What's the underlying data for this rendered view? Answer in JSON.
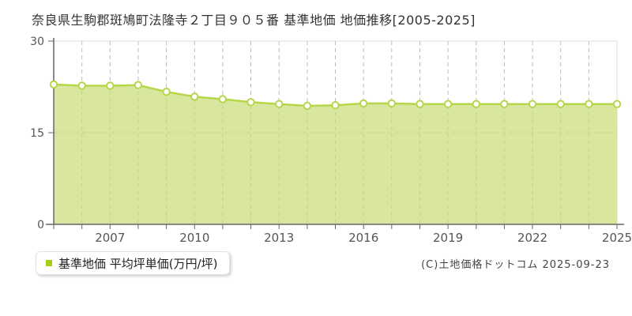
{
  "title": "奈良県生駒郡斑鳩町法隆寺２丁目９０５番 基準地価 地価推移[2005-2025]",
  "legend": {
    "label": "基準地価 平均坪単価(万円/坪)",
    "marker_color": "#a6ce13"
  },
  "copyright": "(C)土地価格ドットコム 2025-09-23",
  "chart_data": {
    "type": "area",
    "title": "奈良県生駒郡斑鳩町法隆寺２丁目９０５番 基準地価 地価推移[2005-2025]",
    "series_name": "基準地価 平均坪単価(万円/坪)",
    "x": [
      2005,
      2006,
      2007,
      2008,
      2009,
      2010,
      2011,
      2012,
      2013,
      2014,
      2015,
      2016,
      2017,
      2018,
      2019,
      2020,
      2021,
      2022,
      2023,
      2024,
      2025
    ],
    "values": [
      22.9,
      22.7,
      22.7,
      22.8,
      21.7,
      20.9,
      20.5,
      20.0,
      19.7,
      19.4,
      19.5,
      19.8,
      19.8,
      19.7,
      19.7,
      19.7,
      19.7,
      19.7,
      19.7,
      19.7,
      19.7
    ],
    "ylabel": "万円/坪",
    "xlabel": "",
    "ylim": [
      0,
      30
    ],
    "yticks": [
      0,
      15,
      30
    ],
    "xticks": [
      2007,
      2010,
      2013,
      2016,
      2019,
      2022,
      2025
    ],
    "grid": "vertical dashed per year, horizontal dashed at 15",
    "legend_position": "bottom-left",
    "colors": {
      "line": "#b6d64a",
      "fill": "#c9dd78",
      "fill_opacity": 0.72,
      "marker_fill": "#ffffff",
      "marker_stroke": "#b6d64a",
      "grid": "#bbbbbb",
      "axis": "#666666",
      "tick_text": "#555555",
      "plot_border": "#dddddd"
    }
  }
}
